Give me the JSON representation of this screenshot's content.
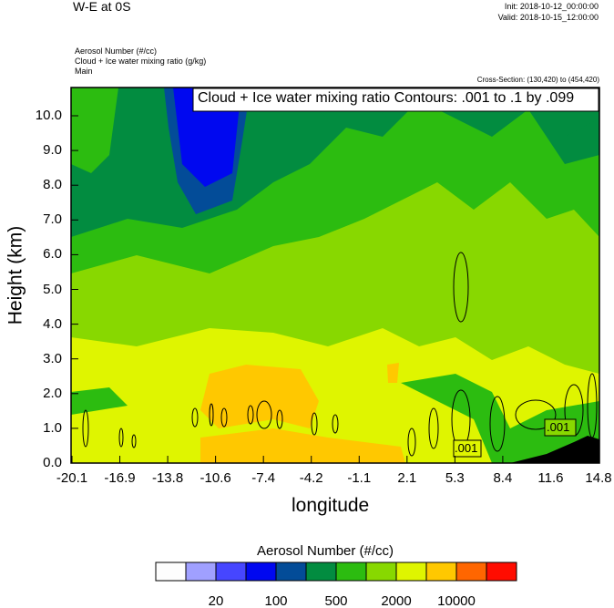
{
  "header": {
    "title": "W-E at 0S",
    "init": "Init: 2018-10-12_00:00:00",
    "valid": "Valid: 2018-10-15_12:00:00",
    "field1": "Aerosol Number   (#/cc)",
    "field2": "Cloud + Ice water mixing ratio   (g/kg)",
    "field3": "Main",
    "cross_section": "Cross-Section: (130,420) to (454,420)"
  },
  "chart_data": {
    "type": "heatmap",
    "title": "Cloud + Ice water mixing ratio Contours: .001 to .1 by .099",
    "xlabel": "longitude",
    "ylabel": "Height (km)",
    "xlim": [
      -20.1,
      14.8
    ],
    "ylim": [
      0,
      10.8
    ],
    "x_ticks": [
      "-20.1",
      "-16.9",
      "-13.8",
      "-10.6",
      "-7.4",
      "-4.2",
      "-1.1",
      "2.1",
      "5.3",
      "8.4",
      "11.6",
      "14.8"
    ],
    "y_ticks": [
      "0.0",
      "1.0",
      "2.0",
      "3.0",
      "4.0",
      "5.0",
      "6.0",
      "7.0",
      "8.0",
      "9.0",
      "10.0"
    ],
    "contour_labels": [
      ".001",
      ".001"
    ],
    "colorbar": {
      "title": "Aerosol Number  (#/cc)",
      "colors": [
        "#fdfdfd",
        "#a0a0ff",
        "#4646ff",
        "#0008f0",
        "#034c98",
        "#028c40",
        "#2cbc10",
        "#88d800",
        "#dff500",
        "#ffc800",
        "#ff6600",
        "#ff0c00"
      ],
      "labels": [
        "20",
        "100",
        "500",
        "2000",
        "10000"
      ]
    }
  }
}
